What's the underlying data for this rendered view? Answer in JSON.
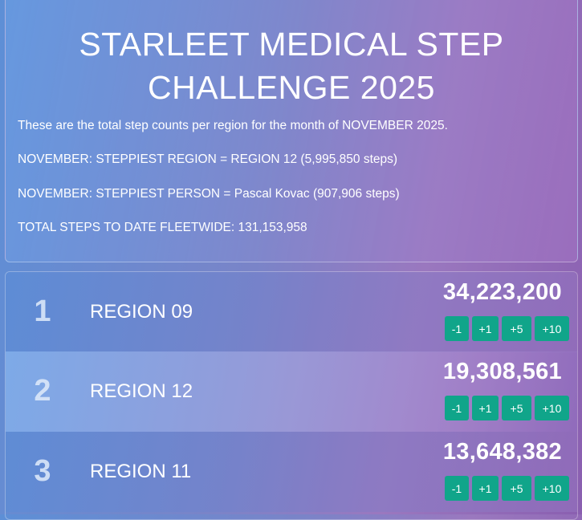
{
  "header": {
    "title": "STARLEET MEDICAL STEP CHALLENGE 2025",
    "description": "These are the total step counts per region for the month of NOVEMBER 2025.",
    "steppiest_region": "NOVEMBER: STEPPIEST REGION = REGION 12 (5,995,850 steps)",
    "steppiest_person": "NOVEMBER: STEPPIEST PERSON = Pascal Kovac (907,906 steps)",
    "total_steps": "TOTAL STEPS TO DATE FLEETWIDE: 131,153,958"
  },
  "leaderboard": [
    {
      "rank": "1",
      "region": "REGION 09",
      "steps": "34,223,200"
    },
    {
      "rank": "2",
      "region": "REGION 12",
      "steps": "19,308,561"
    },
    {
      "rank": "3",
      "region": "REGION 11",
      "steps": "13,648,382"
    }
  ],
  "buttons": {
    "minus1": "-1",
    "plus1": "+1",
    "plus5": "+5",
    "plus10": "+10"
  },
  "colors": {
    "button": "#10a58a",
    "text": "#ffffff"
  }
}
